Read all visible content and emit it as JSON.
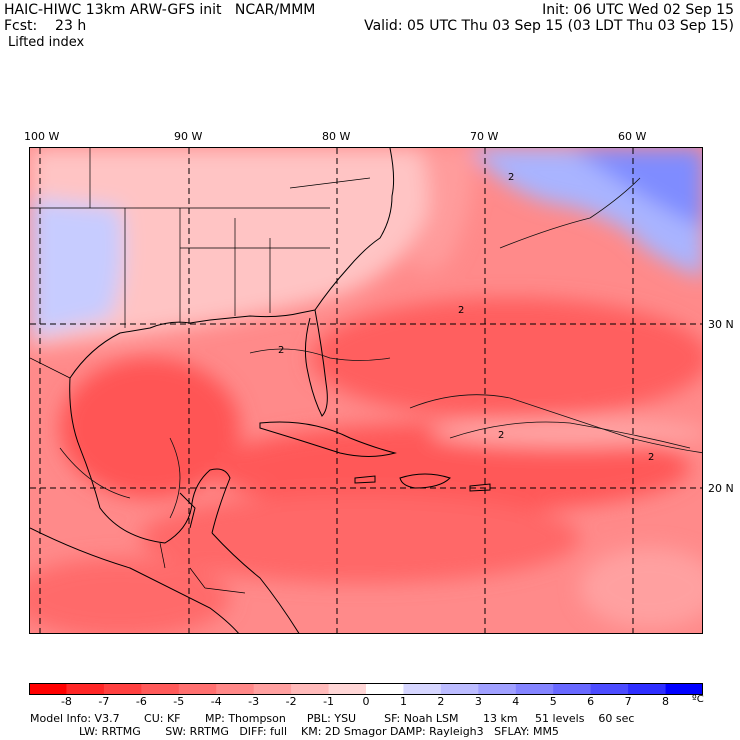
{
  "header": {
    "model_line": "HAIC-HIWC 13km ARW-GFS init   NCAR/MMM",
    "init_line": "Init: 06 UTC Wed 02 Sep 15",
    "fcst_line": "Fcst:    23 h",
    "valid_line": "Valid: 05 UTC Thu 03 Sep 15 (03 LDT Thu 03 Sep 15)",
    "field_name": "Lifted index"
  },
  "map": {
    "lon_labels": [
      "100 W",
      "90 W",
      "80 W",
      "70 W",
      "60 W"
    ],
    "lat_labels": [
      "30 N",
      "20 N"
    ],
    "contour_label": "2"
  },
  "colorbar": {
    "ticks": [
      "-8",
      "-7",
      "-6",
      "-5",
      "-4",
      "-3",
      "-2",
      "-1",
      "0",
      "1",
      "2",
      "3",
      "4",
      "5",
      "6",
      "7",
      "8"
    ],
    "unit": "ºC",
    "colors": [
      "#ff0000",
      "#ff2626",
      "#ff4040",
      "#ff5a5a",
      "#ff7070",
      "#ff8888",
      "#ffa0a0",
      "#ffbaba",
      "#ffd6d6",
      "#ffffff",
      "#d6d6ff",
      "#bcbcff",
      "#a0a0ff",
      "#8484ff",
      "#6868ff",
      "#4c4cff",
      "#2e2eff",
      "#0000ff"
    ]
  },
  "footer": {
    "line1": "Model Info: V3.7       CU: KF       MP: Thompson      PBL: YSU        SF: Noah LSM       13 km     51 levels    60 sec",
    "line2": "              LW: RRTMG       SW: RRTMG   DIFF: full    KM: 2D Smagor DAMP: Rayleigh3   SFLAY: MM5"
  }
}
